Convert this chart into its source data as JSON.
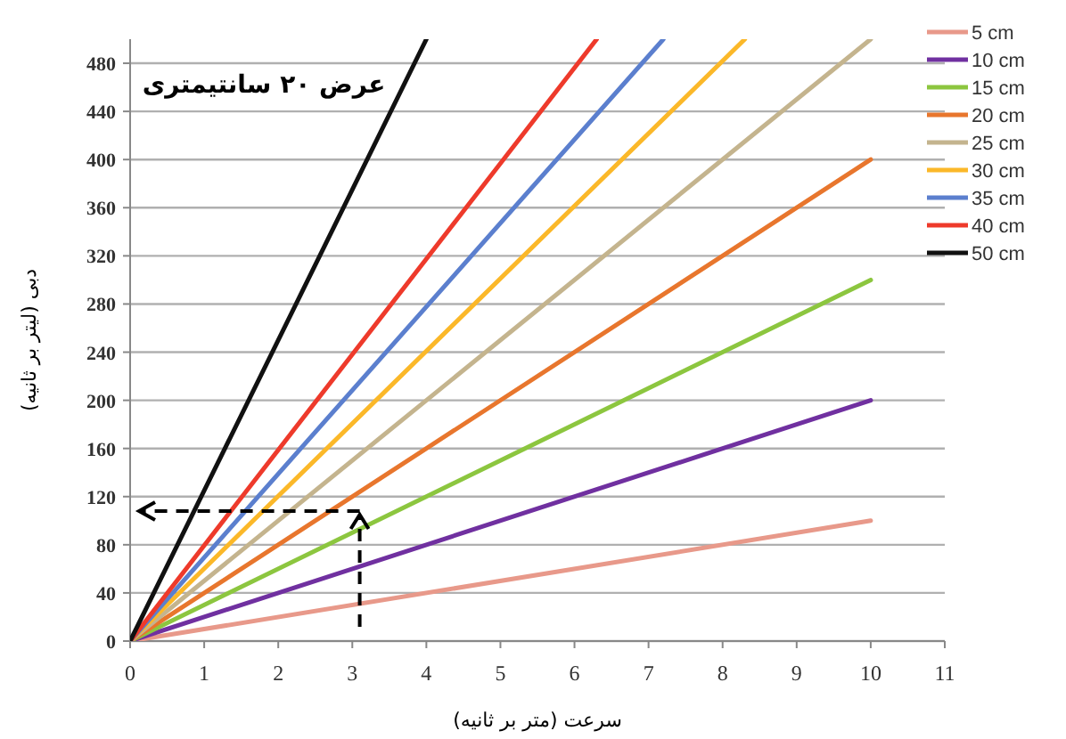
{
  "chart_data": {
    "type": "line",
    "xlabel": "سرعت (متر بر ثانیه)",
    "ylabel": "دبی (لیتر بر ثانیه)",
    "annotations": [
      "عرض ۲۰ سانتیمتری"
    ],
    "xlim": [
      0,
      11
    ],
    "ylim": [
      0,
      500
    ],
    "xticks": [
      0,
      1,
      2,
      3,
      4,
      5,
      6,
      7,
      8,
      9,
      10,
      11
    ],
    "yticks": [
      0,
      40,
      80,
      120,
      160,
      200,
      240,
      280,
      320,
      360,
      400,
      440,
      480
    ],
    "grid": "y",
    "legend": "right",
    "marker": "none",
    "line_style": "solid",
    "series": [
      {
        "name": "5 cm",
        "color": "#e8998a",
        "x": [
          0,
          10
        ],
        "values": [
          0,
          100
        ]
      },
      {
        "name": "10 cm",
        "color": "#7030a0",
        "x": [
          0,
          10
        ],
        "values": [
          0,
          200
        ]
      },
      {
        "name": "15 cm",
        "color": "#8cc63f",
        "x": [
          0,
          10
        ],
        "values": [
          0,
          300
        ]
      },
      {
        "name": "20 cm",
        "color": "#e8762d",
        "x": [
          0,
          10
        ],
        "values": [
          0,
          400
        ]
      },
      {
        "name": "25 cm",
        "color": "#c4b48e",
        "x": [
          0,
          10
        ],
        "values": [
          0,
          500
        ]
      },
      {
        "name": "30 cm",
        "color": "#fbb829",
        "x": [
          0,
          8.3
        ],
        "values": [
          0,
          500
        ]
      },
      {
        "name": "35 cm",
        "color": "#5b7fce",
        "x": [
          0,
          7.2
        ],
        "values": [
          0,
          500
        ]
      },
      {
        "name": "40 cm",
        "color": "#ee3a2b",
        "x": [
          0,
          6.3
        ],
        "values": [
          0,
          500
        ]
      },
      {
        "name": "50 cm",
        "color": "#111111",
        "x": [
          0,
          4
        ],
        "values": [
          0,
          500
        ]
      }
    ]
  }
}
